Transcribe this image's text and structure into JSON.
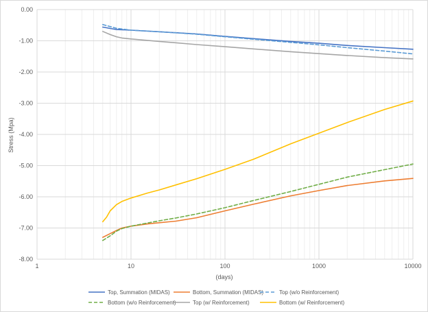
{
  "chart_data": {
    "type": "line",
    "title": "",
    "xlabel": "(days)",
    "ylabel": "Stress (Mpa)",
    "xscale": "log",
    "xlim": [
      1,
      10000
    ],
    "ylim": [
      -8,
      0
    ],
    "grid": true,
    "legend_position": "bottom",
    "x_ticks": [
      1,
      10,
      100,
      1000,
      10000
    ],
    "x_tick_labels": [
      "1",
      "10",
      "100",
      "1000",
      "10000"
    ],
    "y_ticks": [
      0,
      -1,
      -2,
      -3,
      -4,
      -5,
      -6,
      -7,
      -8
    ],
    "y_tick_labels": [
      "0.00",
      "-1.00",
      "-2.00",
      "-3.00",
      "-4.00",
      "-5.00",
      "-6.00",
      "-7.00",
      "-8.00"
    ],
    "series": [
      {
        "name": "Top, Summation (MIDAS)",
        "color": "#4472c4",
        "dash": "solid",
        "x": [
          5,
          7,
          10,
          20,
          50,
          100,
          200,
          500,
          1000,
          2000,
          5000,
          10000
        ],
        "y": [
          -0.56,
          -0.64,
          -0.66,
          -0.71,
          -0.78,
          -0.86,
          -0.93,
          -1.02,
          -1.08,
          -1.15,
          -1.22,
          -1.27
        ]
      },
      {
        "name": "Bottom, Summation (MIDAS)",
        "color": "#ed7d31",
        "dash": "solid",
        "x": [
          5,
          6,
          7,
          8,
          10,
          15,
          20,
          30,
          50,
          100,
          200,
          500,
          1000,
          2000,
          5000,
          10000
        ],
        "y": [
          -7.3,
          -7.18,
          -7.08,
          -7.0,
          -6.94,
          -6.87,
          -6.83,
          -6.78,
          -6.67,
          -6.45,
          -6.24,
          -5.97,
          -5.8,
          -5.64,
          -5.49,
          -5.41
        ]
      },
      {
        "name": "Top (w/o Reinforcement)",
        "color": "#5b9bd5",
        "dash": "dashed",
        "x": [
          5,
          7,
          10,
          20,
          50,
          100,
          200,
          500,
          1000,
          2000,
          5000,
          10000
        ],
        "y": [
          -0.48,
          -0.6,
          -0.66,
          -0.71,
          -0.79,
          -0.87,
          -0.95,
          -1.05,
          -1.13,
          -1.22,
          -1.33,
          -1.42
        ]
      },
      {
        "name": "Bottom (w/o Reinforcement)",
        "color": "#70ad47",
        "dash": "dashed",
        "x": [
          5,
          6,
          7,
          8,
          10,
          15,
          20,
          30,
          50,
          100,
          200,
          500,
          1000,
          2000,
          5000,
          10000
        ],
        "y": [
          -7.4,
          -7.25,
          -7.1,
          -7.02,
          -6.94,
          -6.84,
          -6.77,
          -6.68,
          -6.55,
          -6.35,
          -6.12,
          -5.83,
          -5.6,
          -5.37,
          -5.13,
          -4.95
        ]
      },
      {
        "name": "Top (w/ Reinforcement)",
        "color": "#a5a5a5",
        "dash": "solid",
        "x": [
          5,
          6,
          7,
          8,
          10,
          20,
          50,
          100,
          200,
          500,
          1000,
          2000,
          5000,
          10000
        ],
        "y": [
          -0.7,
          -0.8,
          -0.87,
          -0.91,
          -0.94,
          -1.02,
          -1.12,
          -1.19,
          -1.26,
          -1.35,
          -1.41,
          -1.47,
          -1.54,
          -1.58
        ]
      },
      {
        "name": "Bottom (w/ Reinforcement)",
        "color": "#ffc000",
        "dash": "solid",
        "x": [
          5,
          5.5,
          6,
          7,
          8,
          10,
          15,
          20,
          30,
          50,
          100,
          200,
          500,
          1000,
          2000,
          5000,
          10000
        ],
        "y": [
          -6.8,
          -6.65,
          -6.45,
          -6.25,
          -6.15,
          -6.04,
          -5.88,
          -5.78,
          -5.62,
          -5.42,
          -5.12,
          -4.8,
          -4.3,
          -3.96,
          -3.62,
          -3.2,
          -2.93
        ]
      }
    ]
  }
}
